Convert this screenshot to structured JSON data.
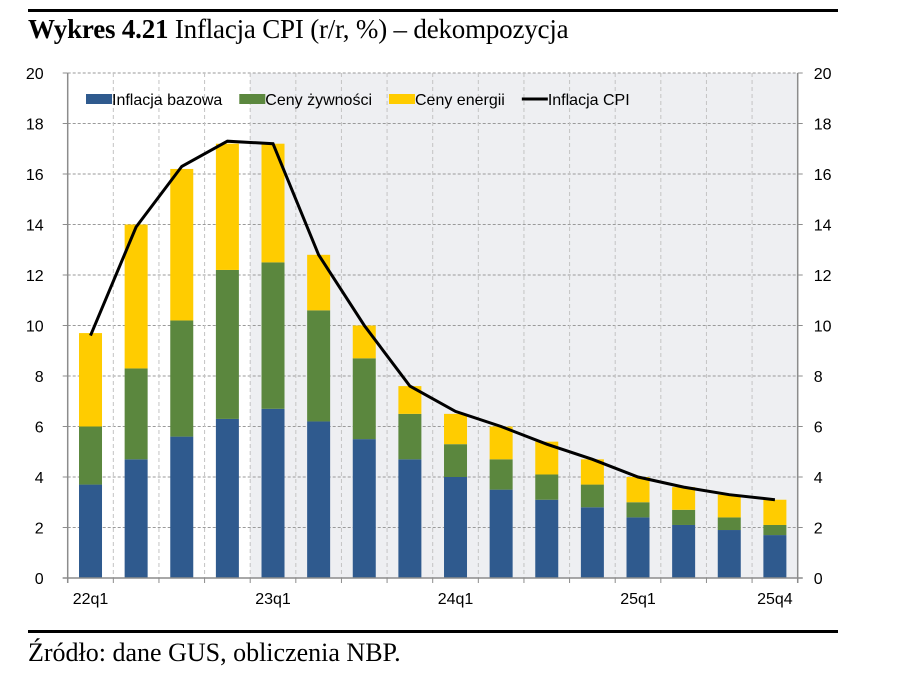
{
  "header": {
    "title_bold": "Wykres 4.21",
    "title_rest": " Inflacja CPI (r/r, %) – dekompozycja"
  },
  "footer": {
    "source": "Źródło: dane GUS, obliczenia NBP."
  },
  "colors": {
    "core": "#2F5A8E",
    "food": "#5B873E",
    "energy": "#FFCC00",
    "cpi": "#000000",
    "shade": "#EEEFF2"
  },
  "chart_data": {
    "type": "bar",
    "stacked": true,
    "title": "Inflacja CPI (r/r, %) – dekompozycja",
    "xlabel": "",
    "ylabel": "",
    "ylim": [
      0,
      20
    ],
    "yticks": [
      0,
      2,
      4,
      6,
      8,
      10,
      12,
      14,
      16,
      18,
      20
    ],
    "y_axes": [
      "left",
      "right"
    ],
    "grid": true,
    "legend_position": "top",
    "shaded_from_category": "23q1",
    "categories": [
      "22q1",
      "22q2",
      "22q3",
      "22q4",
      "23q1",
      "23q2",
      "23q3",
      "23q4",
      "24q1",
      "24q2",
      "24q3",
      "24q4",
      "25q1",
      "25q2",
      "25q3",
      "25q4"
    ],
    "xtick_labels": [
      {
        "category": "22q1",
        "label": "22q1"
      },
      {
        "category": "23q1",
        "label": "23q1"
      },
      {
        "category": "24q1",
        "label": "24q1"
      },
      {
        "category": "25q1",
        "label": "25q1"
      },
      {
        "category": "25q4",
        "label": "25q4"
      }
    ],
    "series": [
      {
        "name": "Inflacja bazowa",
        "kind": "bar",
        "color_key": "core",
        "values": [
          3.7,
          4.7,
          5.6,
          6.3,
          6.7,
          6.2,
          5.5,
          4.7,
          4.0,
          3.5,
          3.1,
          2.8,
          2.4,
          2.1,
          1.9,
          1.7
        ]
      },
      {
        "name": "Ceny żywności",
        "kind": "bar",
        "color_key": "food",
        "values": [
          2.3,
          3.6,
          4.6,
          5.9,
          5.8,
          4.4,
          3.2,
          1.8,
          1.3,
          1.2,
          1.0,
          0.9,
          0.6,
          0.6,
          0.5,
          0.4
        ]
      },
      {
        "name": "Ceny energii",
        "kind": "bar",
        "color_key": "energy",
        "values": [
          3.7,
          5.7,
          6.0,
          5.0,
          4.7,
          2.2,
          1.3,
          1.1,
          1.2,
          1.3,
          1.3,
          1.0,
          1.0,
          0.9,
          0.9,
          1.0
        ]
      },
      {
        "name": "Inflacja CPI",
        "kind": "line",
        "color_key": "cpi",
        "values": [
          9.6,
          13.9,
          16.3,
          17.3,
          17.2,
          12.8,
          10.0,
          7.6,
          6.6,
          6.0,
          5.3,
          4.7,
          4.0,
          3.6,
          3.3,
          3.1
        ]
      }
    ]
  }
}
